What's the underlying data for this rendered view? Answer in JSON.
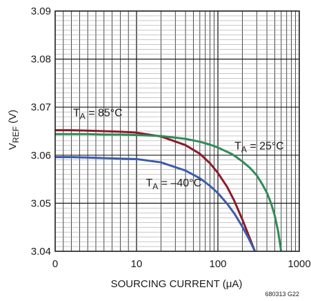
{
  "chart_data": {
    "type": "line",
    "title": "",
    "xlabel": "SOURCING CURRENT (μA)",
    "ylabel": {
      "main": "V",
      "sub": "REF",
      "unit": " (V)"
    },
    "xscale": "pseudo-log (linear 0–10, log 10–1000)",
    "xlim": [
      0,
      1000
    ],
    "ylim": [
      3.04,
      3.09
    ],
    "x_ticks": [
      {
        "value": 0,
        "label": "0"
      },
      {
        "value": 10,
        "label": "10"
      },
      {
        "value": 100,
        "label": "100"
      },
      {
        "value": 1000,
        "label": "1000"
      }
    ],
    "y_ticks": [
      {
        "value": 3.04,
        "label": "3.04"
      },
      {
        "value": 3.05,
        "label": "3.05"
      },
      {
        "value": 3.06,
        "label": "3.06"
      },
      {
        "value": 3.07,
        "label": "3.07"
      },
      {
        "value": 3.08,
        "label": "3.08"
      },
      {
        "value": 3.09,
        "label": "3.09"
      }
    ],
    "grid": true,
    "series": [
      {
        "name": "T_A = 85°C",
        "color": "#8b1a2b",
        "x": [
          0,
          2,
          4,
          6,
          8,
          10,
          20,
          40,
          60,
          80,
          100,
          130,
          160,
          200,
          240,
          280,
          310,
          330
        ],
        "y": [
          3.0652,
          3.0652,
          3.0651,
          3.065,
          3.0649,
          3.0647,
          3.0639,
          3.0621,
          3.0603,
          3.0583,
          3.0563,
          3.0534,
          3.0504,
          3.0466,
          3.0432,
          3.0403,
          3.0381,
          3.0368
        ]
      },
      {
        "name": "T_A = 25°C",
        "color": "#2e8b57",
        "x": [
          0,
          2,
          4,
          6,
          8,
          10,
          20,
          40,
          60,
          80,
          100,
          150,
          200,
          250,
          300,
          350,
          400,
          450,
          500,
          550,
          600,
          650
        ],
        "y": [
          3.0644,
          3.0644,
          3.0644,
          3.0643,
          3.0643,
          3.0642,
          3.064,
          3.0634,
          3.0628,
          3.0622,
          3.0616,
          3.0602,
          3.0587,
          3.0573,
          3.0558,
          3.054,
          3.0522,
          3.05,
          3.0474,
          3.0441,
          3.0399,
          3.0345
        ]
      },
      {
        "name": "T_A = −40°C",
        "color": "#3b5bab",
        "x": [
          0,
          2,
          4,
          6,
          8,
          10,
          20,
          40,
          60,
          80,
          100,
          130,
          160,
          200,
          240,
          280,
          320,
          350
        ],
        "y": [
          3.0596,
          3.0596,
          3.0595,
          3.0594,
          3.0593,
          3.0592,
          3.0585,
          3.0568,
          3.0552,
          3.0536,
          3.0521,
          3.0499,
          3.0478,
          3.0451,
          3.0426,
          3.0403,
          3.038,
          3.0362
        ]
      }
    ],
    "annotations": [
      {
        "series": 0,
        "main": "T",
        "sub": "A",
        "rest": " = 85°C",
        "x": 2.2,
        "y": 3.0681
      },
      {
        "series": 1,
        "main": "T",
        "sub": "A",
        "rest": " = 25°C",
        "x": 160,
        "y": 3.0612
      },
      {
        "series": 2,
        "main": "T",
        "sub": "A",
        "rest": " = –40°C",
        "x": 13,
        "y": 3.0535
      }
    ]
  },
  "figure_id": "680313 G22"
}
